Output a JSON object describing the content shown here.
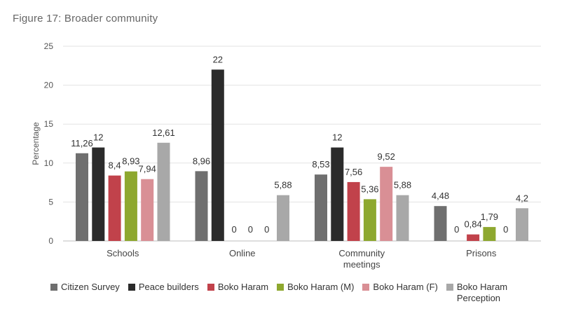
{
  "figure_title": "Figure 17: Broader community",
  "chart_data": {
    "type": "bar",
    "ylabel": "Percentage",
    "ylim": [
      0,
      25
    ],
    "yticks": [
      0,
      5,
      10,
      15,
      20,
      25
    ],
    "categories": [
      "Schools",
      "Online",
      "Community meetings",
      "Prisons"
    ],
    "series": [
      {
        "name": "Citizen Survey",
        "color": "#6f6f6f",
        "values": [
          11.26,
          8.96,
          8.53,
          4.48
        ],
        "labels": [
          "11,26",
          "8,96",
          "8,53",
          "4,48"
        ]
      },
      {
        "name": "Peace builders",
        "color": "#2b2b2b",
        "values": [
          12,
          22,
          12,
          0
        ],
        "labels": [
          "12",
          "22",
          "12",
          "0"
        ]
      },
      {
        "name": "Boko Haram",
        "color": "#c1424b",
        "values": [
          8.4,
          0,
          7.56,
          0.84
        ],
        "labels": [
          "8,4",
          "0",
          "7,56",
          "0,84"
        ]
      },
      {
        "name": "Boko Haram (M)",
        "color": "#8ea82f",
        "values": [
          8.93,
          0,
          5.36,
          1.79
        ],
        "labels": [
          "8,93",
          "0",
          "5,36",
          "1,79"
        ]
      },
      {
        "name": "Boko Haram (F)",
        "color": "#d98f95",
        "values": [
          7.94,
          0,
          9.52,
          0
        ],
        "labels": [
          "7,94",
          "0",
          "9,52",
          "0"
        ]
      },
      {
        "name": "Boko Haram Perception",
        "color": "#a8a8a8",
        "values": [
          12.61,
          5.88,
          5.88,
          4.2
        ],
        "labels": [
          "12,61",
          "5,88",
          "5,88",
          "4,2"
        ]
      }
    ],
    "grid": true,
    "legend_position": "bottom"
  }
}
